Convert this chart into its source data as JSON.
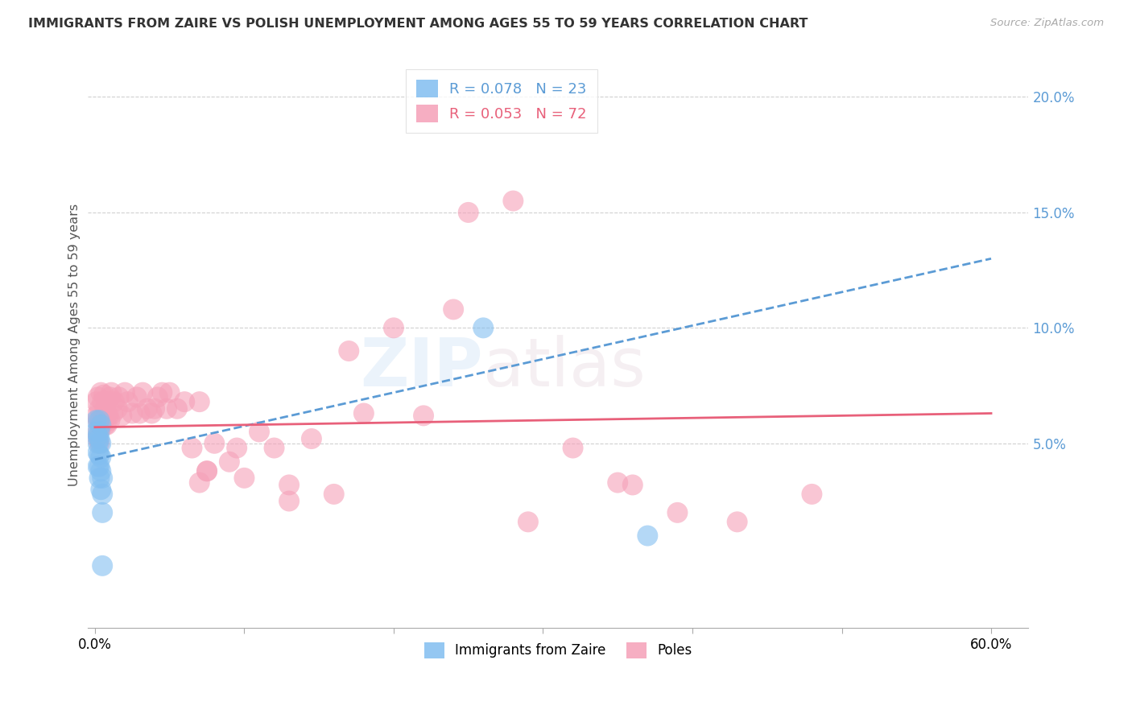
{
  "title": "IMMIGRANTS FROM ZAIRE VS POLISH UNEMPLOYMENT AMONG AGES 55 TO 59 YEARS CORRELATION CHART",
  "source": "Source: ZipAtlas.com",
  "ylabel": "Unemployment Among Ages 55 to 59 years",
  "ylim": [
    -0.03,
    0.215
  ],
  "xlim": [
    -0.005,
    0.625
  ],
  "ytick_vals": [
    0.05,
    0.1,
    0.15,
    0.2
  ],
  "legend_label_blue": "Immigrants from Zaire",
  "legend_label_pink": "Poles",
  "color_blue": "#82bef0",
  "color_pink": "#f5a0b8",
  "color_blue_line": "#5b9bd5",
  "color_pink_line": "#e8607a",
  "color_grid": "#d0d0d0",
  "color_right_tick": "#5b9bd5",
  "watermark": "ZIPatlas",
  "blue_x": [
    0.001,
    0.001,
    0.002,
    0.002,
    0.002,
    0.002,
    0.003,
    0.003,
    0.003,
    0.003,
    0.003,
    0.003,
    0.004,
    0.004,
    0.004,
    0.004,
    0.004,
    0.005,
    0.005,
    0.005,
    0.005,
    0.26,
    0.37
  ],
  "blue_y": [
    0.06,
    0.055,
    0.053,
    0.05,
    0.046,
    0.04,
    0.06,
    0.055,
    0.052,
    0.045,
    0.04,
    0.035,
    0.058,
    0.05,
    0.044,
    0.038,
    0.03,
    0.035,
    0.028,
    0.02,
    -0.003,
    0.1,
    0.01
  ],
  "pink_x": [
    0.001,
    0.001,
    0.002,
    0.002,
    0.002,
    0.002,
    0.003,
    0.003,
    0.003,
    0.004,
    0.004,
    0.005,
    0.005,
    0.006,
    0.006,
    0.007,
    0.007,
    0.008,
    0.008,
    0.009,
    0.01,
    0.01,
    0.011,
    0.012,
    0.013,
    0.015,
    0.016,
    0.018,
    0.02,
    0.022,
    0.025,
    0.028,
    0.03,
    0.032,
    0.035,
    0.038,
    0.04,
    0.042,
    0.045,
    0.048,
    0.05,
    0.055,
    0.06,
    0.065,
    0.07,
    0.075,
    0.08,
    0.09,
    0.1,
    0.11,
    0.12,
    0.13,
    0.145,
    0.16,
    0.18,
    0.2,
    0.22,
    0.24,
    0.28,
    0.32,
    0.35,
    0.39,
    0.43,
    0.48,
    0.25,
    0.17,
    0.29,
    0.36,
    0.13,
    0.095,
    0.075,
    0.07
  ],
  "pink_y": [
    0.068,
    0.062,
    0.07,
    0.06,
    0.055,
    0.052,
    0.065,
    0.058,
    0.05,
    0.072,
    0.06,
    0.068,
    0.058,
    0.071,
    0.06,
    0.065,
    0.058,
    0.068,
    0.058,
    0.062,
    0.07,
    0.06,
    0.072,
    0.063,
    0.068,
    0.065,
    0.07,
    0.062,
    0.072,
    0.068,
    0.063,
    0.07,
    0.063,
    0.072,
    0.065,
    0.063,
    0.065,
    0.07,
    0.072,
    0.065,
    0.072,
    0.065,
    0.068,
    0.048,
    0.068,
    0.038,
    0.05,
    0.042,
    0.035,
    0.055,
    0.048,
    0.032,
    0.052,
    0.028,
    0.063,
    0.1,
    0.062,
    0.108,
    0.155,
    0.048,
    0.033,
    0.02,
    0.016,
    0.028,
    0.15,
    0.09,
    0.016,
    0.032,
    0.025,
    0.048,
    0.038,
    0.033
  ],
  "blue_trend_x0": 0.0,
  "blue_trend_x1": 0.6,
  "blue_trend_y0": 0.043,
  "blue_trend_y1": 0.13,
  "pink_trend_x0": 0.0,
  "pink_trend_x1": 0.6,
  "pink_trend_y0": 0.057,
  "pink_trend_y1": 0.063
}
